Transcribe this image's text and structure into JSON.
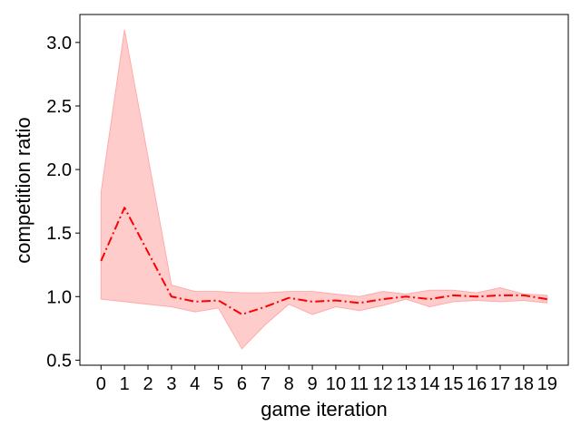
{
  "chart_data": {
    "type": "line",
    "xlabel": "game iteration",
    "ylabel": "competition ratio",
    "xlim": [
      -0.9,
      19.9
    ],
    "ylim": [
      0.46,
      3.22
    ],
    "x_ticks": [
      0,
      1,
      2,
      3,
      4,
      5,
      6,
      7,
      8,
      9,
      10,
      11,
      12,
      13,
      14,
      15,
      16,
      17,
      18,
      19
    ],
    "y_ticks": [
      0.5,
      1.0,
      1.5,
      2.0,
      2.5,
      3.0
    ],
    "y_tick_labels": [
      "0.5",
      "1.0",
      "1.5",
      "2.0",
      "2.5",
      "3.0"
    ],
    "grid": false,
    "series": [
      {
        "x": [
          0,
          1,
          2,
          3,
          4,
          5,
          6,
          7,
          8,
          9,
          10,
          11,
          12,
          13,
          14,
          15,
          16,
          17,
          18,
          19
        ],
        "values": [
          1.28,
          1.7,
          1.35,
          1.0,
          0.96,
          0.97,
          0.86,
          0.92,
          0.99,
          0.96,
          0.97,
          0.95,
          0.98,
          1.0,
          0.98,
          1.01,
          1.0,
          1.01,
          1.01,
          0.98
        ],
        "band_upper": [
          1.82,
          3.1,
          2.1,
          1.09,
          1.04,
          1.04,
          1.03,
          1.03,
          1.04,
          1.04,
          1.02,
          1.0,
          1.04,
          1.02,
          1.05,
          1.05,
          1.03,
          1.07,
          1.02,
          1.01
        ],
        "band_lower": [
          0.98,
          0.96,
          0.94,
          0.92,
          0.88,
          0.91,
          0.59,
          0.78,
          0.94,
          0.86,
          0.92,
          0.89,
          0.93,
          0.98,
          0.92,
          0.96,
          0.97,
          0.96,
          0.97,
          0.95
        ],
        "color": "#ff0000",
        "band_color": "#ffcccc",
        "band_edge_color": "#ffaaaa",
        "line_style": "dash-dot"
      }
    ]
  }
}
